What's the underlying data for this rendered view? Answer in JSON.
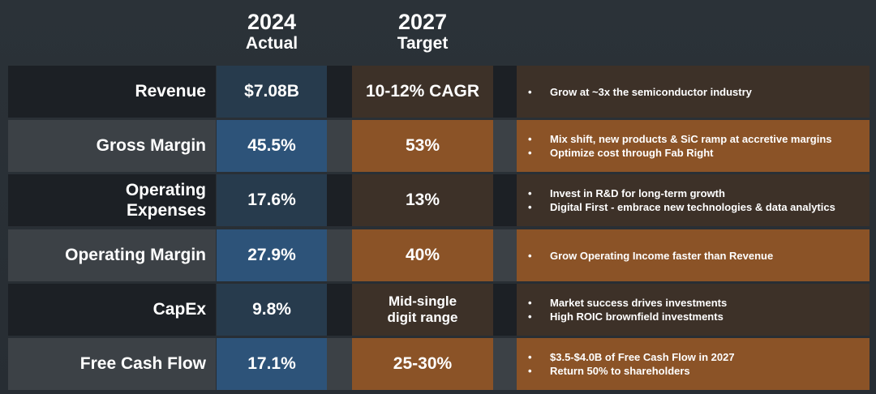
{
  "header": {
    "actual": {
      "year": "2024",
      "sub": "Actual"
    },
    "target": {
      "year": "2027",
      "sub": "Target"
    }
  },
  "rows": [
    {
      "label": "Revenue",
      "actual": "$7.08B",
      "target": "10-12% CAGR",
      "notes": [
        "Grow at ~3x the semiconductor industry"
      ]
    },
    {
      "label": "Gross Margin",
      "actual": "45.5%",
      "target": "53%",
      "notes": [
        "Mix shift, new products & SiC ramp at accretive margins",
        "Optimize cost through Fab Right"
      ]
    },
    {
      "label_line1": "Operating",
      "label_line2": "Expenses",
      "actual": "17.6%",
      "target": "13%",
      "notes": [
        "Invest in R&D for long-term growth",
        "Digital First - embrace new technologies & data analytics"
      ]
    },
    {
      "label": "Operating Margin",
      "actual": "27.9%",
      "target": "40%",
      "notes": [
        "Grow Operating Income faster than Revenue"
      ]
    },
    {
      "label": "CapEx",
      "actual": "9.8%",
      "target_line1": "Mid-single",
      "target_line2": "digit range",
      "notes": [
        "Market success drives investments",
        "High ROIC brownfield investments"
      ]
    },
    {
      "label": "Free Cash Flow",
      "actual": "17.1%",
      "target": "25-30%",
      "notes": [
        "$3.5-$4.0B of Free Cash Flow in 2027",
        "Return 50% to shareholders"
      ]
    }
  ],
  "colors": {
    "background": "#2b3238",
    "actual_dark": "#273b4d",
    "actual_gray": "#2d5379",
    "target_dark": "#3d3128",
    "target_orange": "#8b5327"
  }
}
